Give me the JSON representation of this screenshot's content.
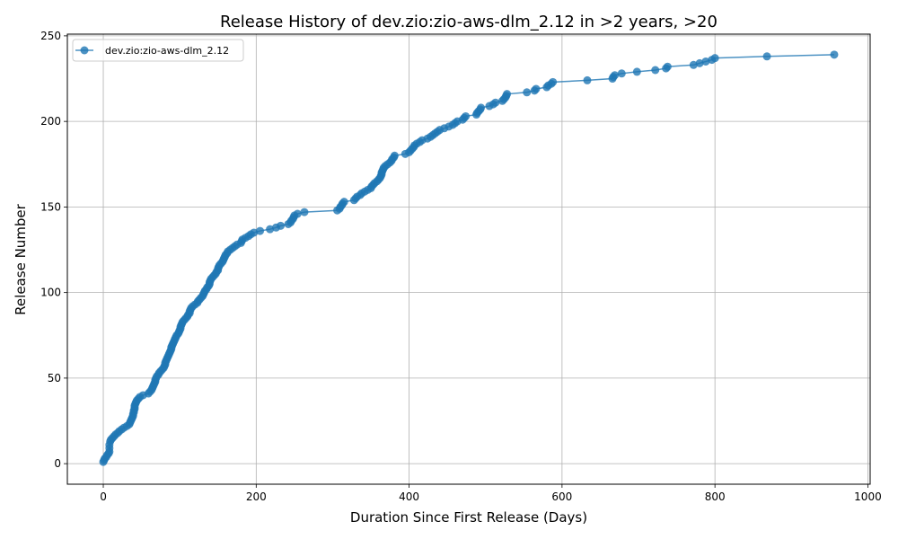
{
  "chart_data": {
    "type": "line",
    "title": "Release History of dev.zio:zio-aws-dlm_2.12 in >2 years, >20",
    "xlabel": "Duration Since First Release (Days)",
    "ylabel": "Release Number",
    "xlim": [
      -47,
      1003
    ],
    "ylim": [
      -12,
      251
    ],
    "xticks": [
      0,
      200,
      400,
      600,
      800,
      1000
    ],
    "yticks": [
      0,
      50,
      100,
      150,
      200,
      250
    ],
    "grid": true,
    "legend_position": "top-left",
    "series": [
      {
        "name": "dev.zio:zio-aws-dlm_2.12",
        "color": "#1f77b4",
        "marker": "circle",
        "points": [
          [
            0,
            1
          ],
          [
            1,
            2
          ],
          [
            2,
            3
          ],
          [
            4,
            4
          ],
          [
            5,
            5
          ],
          [
            7,
            6
          ],
          [
            8,
            7
          ],
          [
            8,
            9
          ],
          [
            8,
            11
          ],
          [
            9,
            13
          ],
          [
            10,
            14
          ],
          [
            12,
            15
          ],
          [
            14,
            16
          ],
          [
            16,
            17
          ],
          [
            19,
            18
          ],
          [
            21,
            19
          ],
          [
            24,
            20
          ],
          [
            27,
            21
          ],
          [
            31,
            22
          ],
          [
            34,
            23
          ],
          [
            35,
            24
          ],
          [
            36,
            25
          ],
          [
            37,
            26
          ],
          [
            38,
            27
          ],
          [
            39,
            28
          ],
          [
            39,
            29
          ],
          [
            40,
            30
          ],
          [
            40,
            31
          ],
          [
            41,
            32
          ],
          [
            41,
            33
          ],
          [
            41,
            34
          ],
          [
            42,
            35
          ],
          [
            43,
            36
          ],
          [
            44,
            37
          ],
          [
            46,
            38
          ],
          [
            48,
            39
          ],
          [
            52,
            40
          ],
          [
            59,
            41
          ],
          [
            61,
            42
          ],
          [
            63,
            43
          ],
          [
            64,
            44
          ],
          [
            65,
            45
          ],
          [
            66,
            46
          ],
          [
            67,
            47
          ],
          [
            68,
            48
          ],
          [
            68,
            49
          ],
          [
            69,
            50
          ],
          [
            70,
            51
          ],
          [
            72,
            52
          ],
          [
            73,
            53
          ],
          [
            75,
            54
          ],
          [
            77,
            55
          ],
          [
            79,
            56
          ],
          [
            80,
            57
          ],
          [
            81,
            58
          ],
          [
            81,
            59
          ],
          [
            82,
            60
          ],
          [
            83,
            61
          ],
          [
            84,
            62
          ],
          [
            85,
            63
          ],
          [
            86,
            64
          ],
          [
            87,
            65
          ],
          [
            88,
            66
          ],
          [
            89,
            67
          ],
          [
            89,
            68
          ],
          [
            90,
            69
          ],
          [
            91,
            70
          ],
          [
            92,
            71
          ],
          [
            93,
            72
          ],
          [
            94,
            73
          ],
          [
            95,
            74
          ],
          [
            96,
            75
          ],
          [
            98,
            76
          ],
          [
            99,
            77
          ],
          [
            100,
            78
          ],
          [
            101,
            79
          ],
          [
            101,
            80
          ],
          [
            102,
            81
          ],
          [
            103,
            82
          ],
          [
            104,
            83
          ],
          [
            106,
            84
          ],
          [
            108,
            85
          ],
          [
            110,
            86
          ],
          [
            111,
            87
          ],
          [
            113,
            88
          ],
          [
            113,
            89
          ],
          [
            114,
            90
          ],
          [
            115,
            91
          ],
          [
            117,
            92
          ],
          [
            120,
            93
          ],
          [
            123,
            94
          ],
          [
            124,
            95
          ],
          [
            126,
            96
          ],
          [
            128,
            97
          ],
          [
            130,
            98
          ],
          [
            131,
            99
          ],
          [
            132,
            100
          ],
          [
            133,
            101
          ],
          [
            135,
            102
          ],
          [
            136,
            103
          ],
          [
            138,
            104
          ],
          [
            139,
            105
          ],
          [
            139,
            106
          ],
          [
            140,
            107
          ],
          [
            141,
            108
          ],
          [
            143,
            109
          ],
          [
            145,
            110
          ],
          [
            147,
            111
          ],
          [
            148,
            112
          ],
          [
            150,
            113
          ],
          [
            150,
            114
          ],
          [
            151,
            115
          ],
          [
            152,
            116
          ],
          [
            154,
            117
          ],
          [
            156,
            118
          ],
          [
            157,
            119
          ],
          [
            158,
            120
          ],
          [
            159,
            121
          ],
          [
            160,
            122
          ],
          [
            162,
            123
          ],
          [
            163,
            124
          ],
          [
            166,
            125
          ],
          [
            169,
            126
          ],
          [
            172,
            127
          ],
          [
            175,
            128
          ],
          [
            180,
            129
          ],
          [
            181,
            130
          ],
          [
            182,
            131
          ],
          [
            186,
            132
          ],
          [
            190,
            133
          ],
          [
            193,
            134
          ],
          [
            197,
            135
          ],
          [
            205,
            136
          ],
          [
            218,
            137
          ],
          [
            226,
            138
          ],
          [
            232,
            139
          ],
          [
            242,
            140
          ],
          [
            245,
            141
          ],
          [
            246,
            142
          ],
          [
            248,
            143
          ],
          [
            249,
            144
          ],
          [
            250,
            145
          ],
          [
            254,
            146
          ],
          [
            263,
            147
          ],
          [
            306,
            148
          ],
          [
            309,
            149
          ],
          [
            310,
            150
          ],
          [
            312,
            151
          ],
          [
            313,
            152
          ],
          [
            315,
            153
          ],
          [
            328,
            154
          ],
          [
            330,
            155
          ],
          [
            332,
            156
          ],
          [
            336,
            157
          ],
          [
            338,
            158
          ],
          [
            342,
            159
          ],
          [
            346,
            160
          ],
          [
            350,
            161
          ],
          [
            351,
            162
          ],
          [
            353,
            163
          ],
          [
            355,
            164
          ],
          [
            358,
            165
          ],
          [
            360,
            166
          ],
          [
            362,
            167
          ],
          [
            363,
            168
          ],
          [
            364,
            169
          ],
          [
            364,
            170
          ],
          [
            365,
            171
          ],
          [
            366,
            172
          ],
          [
            367,
            173
          ],
          [
            369,
            174
          ],
          [
            372,
            175
          ],
          [
            375,
            176
          ],
          [
            377,
            177
          ],
          [
            378,
            178
          ],
          [
            380,
            179
          ],
          [
            381,
            180
          ],
          [
            395,
            181
          ],
          [
            400,
            182
          ],
          [
            402,
            183
          ],
          [
            404,
            184
          ],
          [
            406,
            185
          ],
          [
            407,
            186
          ],
          [
            410,
            187
          ],
          [
            414,
            188
          ],
          [
            417,
            189
          ],
          [
            424,
            190
          ],
          [
            428,
            191
          ],
          [
            431,
            192
          ],
          [
            434,
            193
          ],
          [
            437,
            194
          ],
          [
            440,
            195
          ],
          [
            446,
            196
          ],
          [
            452,
            197
          ],
          [
            457,
            198
          ],
          [
            460,
            199
          ],
          [
            463,
            200
          ],
          [
            470,
            201
          ],
          [
            472,
            202
          ],
          [
            474,
            203
          ],
          [
            488,
            204
          ],
          [
            489,
            205
          ],
          [
            491,
            206
          ],
          [
            493,
            207
          ],
          [
            494,
            208
          ],
          [
            505,
            209
          ],
          [
            510,
            210
          ],
          [
            513,
            211
          ],
          [
            522,
            212
          ],
          [
            524,
            213
          ],
          [
            526,
            214
          ],
          [
            527,
            215
          ],
          [
            528,
            216
          ],
          [
            554,
            217
          ],
          [
            564,
            218
          ],
          [
            566,
            219
          ],
          [
            580,
            220
          ],
          [
            582,
            221
          ],
          [
            586,
            222
          ],
          [
            588,
            223
          ],
          [
            633,
            224
          ],
          [
            666,
            225
          ],
          [
            667,
            226
          ],
          [
            669,
            227
          ],
          [
            678,
            228
          ],
          [
            698,
            229
          ],
          [
            722,
            230
          ],
          [
            736,
            231
          ],
          [
            738,
            232
          ],
          [
            772,
            233
          ],
          [
            780,
            234
          ],
          [
            788,
            235
          ],
          [
            796,
            236
          ],
          [
            800,
            237
          ],
          [
            868,
            238
          ],
          [
            956,
            239
          ]
        ]
      }
    ]
  }
}
